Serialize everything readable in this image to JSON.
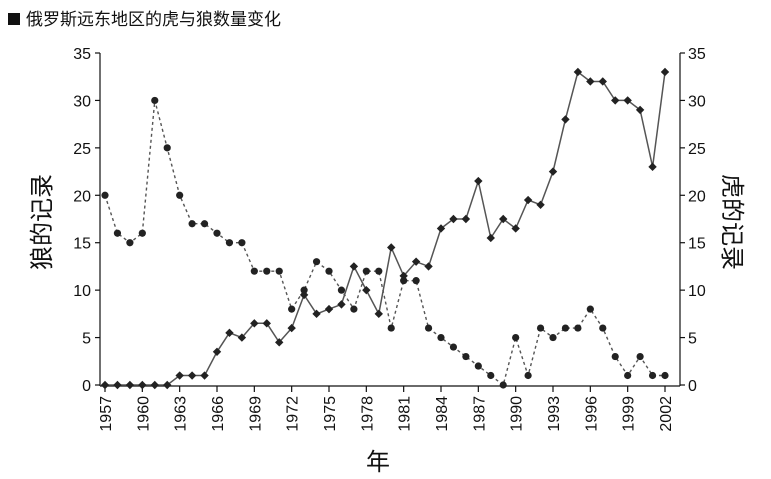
{
  "chart_data": {
    "type": "line",
    "title": "俄罗斯远东地区的虎与狼数量变化",
    "xlabel": "年",
    "ylabel_left": "狼的记录",
    "ylabel_right": "虎的记录",
    "xlim": [
      1957,
      2002
    ],
    "ylim": [
      0,
      35
    ],
    "y_ticks": [
      0,
      5,
      10,
      15,
      20,
      25,
      30,
      35
    ],
    "x_ticks": [
      1957,
      1960,
      1963,
      1966,
      1969,
      1972,
      1975,
      1978,
      1981,
      1984,
      1987,
      1990,
      1993,
      1996,
      1999,
      2002
    ],
    "grid": false,
    "series": [
      {
        "axis": "left",
        "line_style": "dotted",
        "marker": "circle",
        "x": [
          1957,
          1958,
          1959,
          1960,
          1961,
          1962,
          1963,
          1964,
          1965,
          1966,
          1967,
          1968,
          1969,
          1970,
          1971,
          1972,
          1973,
          1974,
          1975,
          1976,
          1977,
          1978,
          1979,
          1980,
          1981,
          1982,
          1983,
          1984,
          1985,
          1986,
          1987,
          1988,
          1989,
          1990,
          1991,
          1992,
          1993,
          1994,
          1995,
          1996,
          1997,
          1998,
          1999,
          2000,
          2001,
          2002
        ],
        "values": [
          20,
          16,
          15,
          16,
          30,
          25,
          20,
          17,
          17,
          16,
          15,
          15,
          12,
          12,
          12,
          8,
          10,
          13,
          12,
          10,
          8,
          12,
          12,
          6,
          11,
          11,
          6,
          5,
          4,
          3,
          2,
          1,
          0,
          5,
          1,
          6,
          5,
          6,
          6,
          8,
          6,
          3,
          1,
          3,
          1,
          1
        ]
      },
      {
        "axis": "right",
        "line_style": "solid",
        "marker": "diamond",
        "x": [
          1957,
          1958,
          1959,
          1960,
          1961,
          1962,
          1963,
          1964,
          1965,
          1966,
          1967,
          1968,
          1969,
          1970,
          1971,
          1972,
          1973,
          1974,
          1975,
          1976,
          1977,
          1978,
          1979,
          1980,
          1981,
          1982,
          1983,
          1984,
          1985,
          1986,
          1987,
          1988,
          1989,
          1990,
          1991,
          1992,
          1993,
          1994,
          1995,
          1996,
          1997,
          1998,
          1999,
          2000,
          2001,
          2002
        ],
        "values": [
          0,
          0,
          0,
          0,
          0,
          0,
          1,
          1,
          1,
          3.5,
          5.5,
          5,
          6.5,
          6.5,
          4.5,
          6,
          9.5,
          7.5,
          8,
          8.5,
          12.5,
          10,
          7.5,
          14.5,
          11.5,
          13,
          12.5,
          16.5,
          17.5,
          17.5,
          21.5,
          15.5,
          17.5,
          16.5,
          19.5,
          19,
          22.5,
          28,
          33,
          32,
          32,
          30,
          30,
          29,
          23,
          33
        ]
      }
    ]
  },
  "colors": {
    "line": "#555555",
    "marker": "#222222",
    "text": "#111111"
  }
}
